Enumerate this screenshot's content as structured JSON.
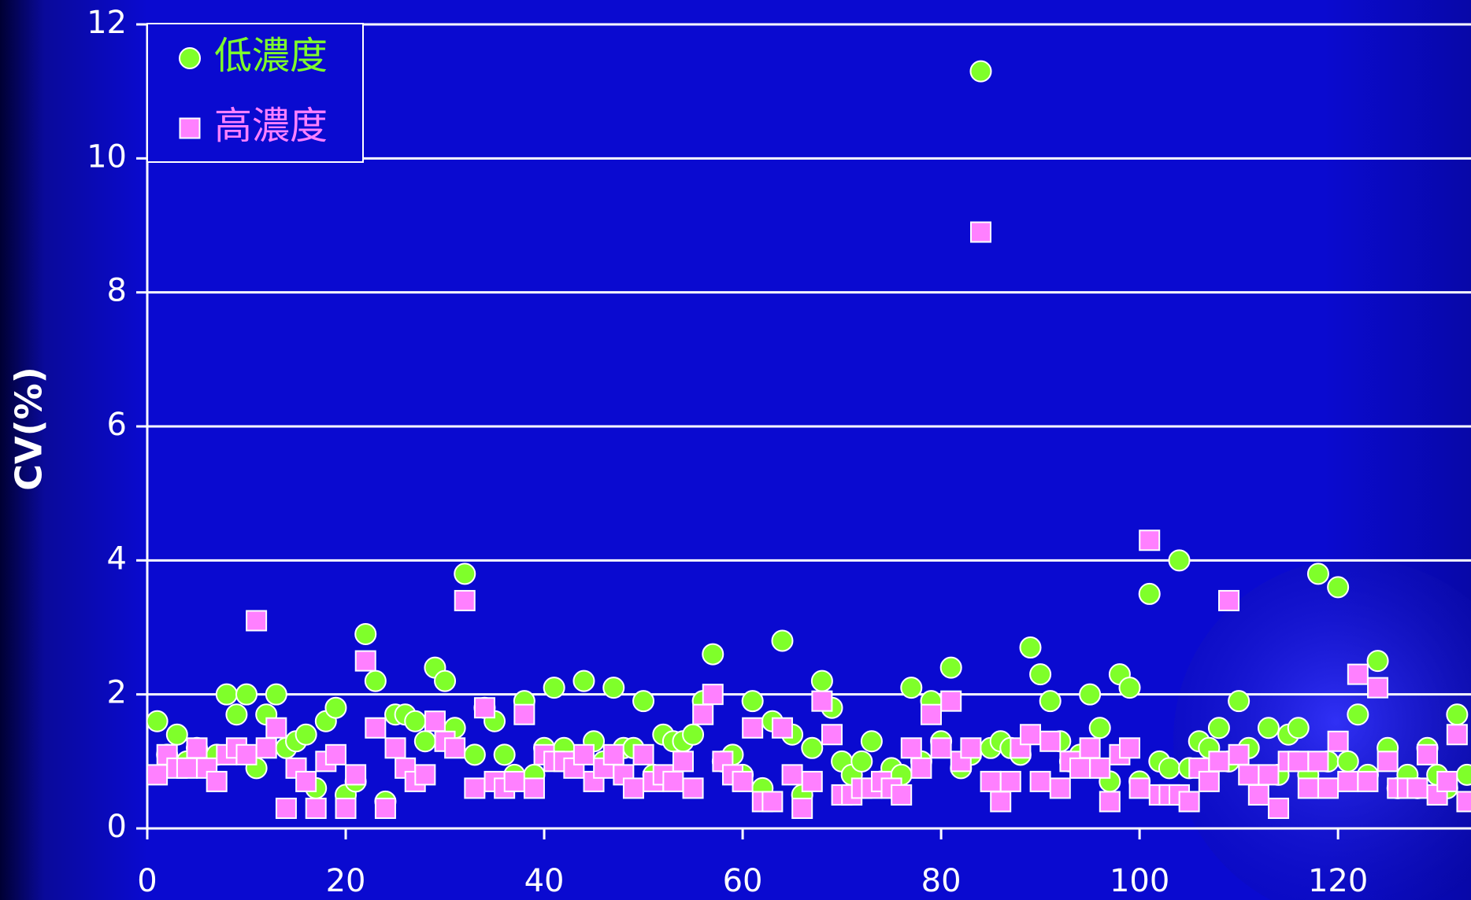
{
  "chart_data": {
    "type": "scatter",
    "y_label": "CV(%)",
    "x": [
      1,
      2,
      3,
      4,
      5,
      6,
      7,
      8,
      9,
      10,
      11,
      12,
      13,
      14,
      15,
      16,
      17,
      18,
      19,
      20,
      21,
      22,
      23,
      24,
      25,
      26,
      27,
      28,
      29,
      30,
      31,
      32,
      33,
      34,
      35,
      36,
      37,
      38,
      39,
      40,
      41,
      42,
      43,
      44,
      45,
      46,
      47,
      48,
      49,
      50,
      51,
      52,
      53,
      54,
      55,
      56,
      57,
      58,
      59,
      60,
      61,
      62,
      63,
      64,
      65,
      66,
      67,
      68,
      69,
      70,
      71,
      72,
      73,
      74,
      75,
      76,
      77,
      78,
      79,
      80,
      81,
      82,
      83,
      84,
      85,
      86,
      87,
      88,
      89,
      90,
      91,
      92,
      93,
      94,
      95,
      96,
      97,
      98,
      99,
      100,
      101,
      102,
      103,
      104,
      105,
      106,
      107,
      108,
      109,
      110,
      111,
      112,
      113,
      114,
      115,
      116,
      117,
      118,
      119,
      120,
      121,
      122,
      123,
      124,
      125,
      126,
      127,
      128,
      129,
      130,
      131,
      132,
      133
    ],
    "series": [
      {
        "name": "低濃度",
        "color": "#7fff2a",
        "marker": "circle",
        "values": [
          1.6,
          1.1,
          1.4,
          1.0,
          1.2,
          1.0,
          1.1,
          2.0,
          1.7,
          2.0,
          0.9,
          1.7,
          2.0,
          1.2,
          1.3,
          1.4,
          0.6,
          1.6,
          1.8,
          0.5,
          0.7,
          2.9,
          2.2,
          0.4,
          1.7,
          1.7,
          1.6,
          1.3,
          2.4,
          2.2,
          1.5,
          3.8,
          1.1,
          1.8,
          1.6,
          1.1,
          0.8,
          1.9,
          0.8,
          1.2,
          2.1,
          1.2,
          1.0,
          2.2,
          1.3,
          1.0,
          2.1,
          1.2,
          1.2,
          1.9,
          0.8,
          1.4,
          1.3,
          1.3,
          1.4,
          1.9,
          2.6,
          1.0,
          1.1,
          0.8,
          1.9,
          0.6,
          1.6,
          2.8,
          1.4,
          0.5,
          1.2,
          2.2,
          1.8,
          1.0,
          0.8,
          1.0,
          1.3,
          0.7,
          0.9,
          0.8,
          2.1,
          1.0,
          1.9,
          1.3,
          2.4,
          0.9,
          1.1,
          11.3,
          1.2,
          1.3,
          1.2,
          1.1,
          2.7,
          2.3,
          1.9,
          1.3,
          1.0,
          1.1,
          2.0,
          1.5,
          0.7,
          2.3,
          2.1,
          0.7,
          3.5,
          1.0,
          0.9,
          4.0,
          0.9,
          1.3,
          1.2,
          1.5,
          1.0,
          1.9,
          1.2,
          0.7,
          1.5,
          0.8,
          1.4,
          1.5,
          0.8,
          3.8,
          1.0,
          3.6,
          1.0,
          1.7,
          0.8,
          2.5,
          1.2,
          0.6,
          0.8,
          0.6,
          1.2,
          0.8,
          0.6,
          1.7,
          0.8
        ]
      },
      {
        "name": "高濃度",
        "color": "#ff80ff",
        "marker": "square",
        "values": [
          0.8,
          1.1,
          0.9,
          0.9,
          1.2,
          0.9,
          0.7,
          1.1,
          1.2,
          1.1,
          3.1,
          1.2,
          1.5,
          0.3,
          0.9,
          0.7,
          0.3,
          1.0,
          1.1,
          0.3,
          0.8,
          2.5,
          1.5,
          0.3,
          1.2,
          0.9,
          0.7,
          0.8,
          1.6,
          1.3,
          1.2,
          3.4,
          0.6,
          1.8,
          0.7,
          0.6,
          0.7,
          1.7,
          0.6,
          1.1,
          1.0,
          1.0,
          0.9,
          1.1,
          0.7,
          0.9,
          1.1,
          0.8,
          0.6,
          1.1,
          0.7,
          0.8,
          0.7,
          1.0,
          0.6,
          1.7,
          2.0,
          1.0,
          0.8,
          0.7,
          1.5,
          0.4,
          0.4,
          1.5,
          0.8,
          0.3,
          0.7,
          1.9,
          1.4,
          0.5,
          0.5,
          0.6,
          0.6,
          0.7,
          0.6,
          0.5,
          1.2,
          0.9,
          1.7,
          1.2,
          1.9,
          1.0,
          1.2,
          8.9,
          0.7,
          0.4,
          0.7,
          1.2,
          1.4,
          0.7,
          1.3,
          0.6,
          1.0,
          0.9,
          1.2,
          0.9,
          0.4,
          1.1,
          1.2,
          0.6,
          4.3,
          0.5,
          0.5,
          0.5,
          0.4,
          0.9,
          0.7,
          1.0,
          3.4,
          1.1,
          0.8,
          0.5,
          0.8,
          0.3,
          1.0,
          1.0,
          0.6,
          1.0,
          0.6,
          1.3,
          0.7,
          2.3,
          0.7,
          2.1,
          1.0,
          0.6,
          0.6,
          0.6,
          1.1,
          0.5,
          0.7,
          1.4,
          0.4
        ]
      }
    ],
    "xlim": [
      0,
      133.4
    ],
    "xticks": [
      0,
      20,
      40,
      60,
      80,
      100,
      120
    ],
    "ylim": [
      0,
      12
    ],
    "yticks": [
      0,
      2,
      4,
      6,
      8,
      10,
      12
    ],
    "grid": true,
    "legend": "top-left"
  }
}
